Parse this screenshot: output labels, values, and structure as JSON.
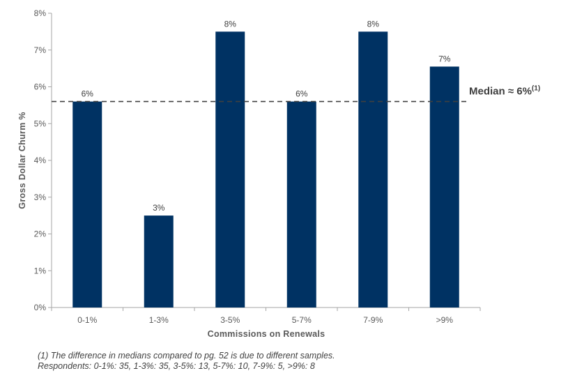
{
  "chart_data": {
    "type": "bar",
    "categories": [
      "0-1%",
      "1-3%",
      "3-5%",
      "5-7%",
      "7-9%",
      ">9%"
    ],
    "values": [
      5.6,
      2.5,
      7.5,
      5.6,
      7.5,
      6.55
    ],
    "data_labels": [
      "6%",
      "3%",
      "8%",
      "6%",
      "8%",
      "7%"
    ],
    "xlabel": "Commissions on Renewals",
    "ylabel": "Gross Dollar Churm %",
    "ylim": [
      0,
      8
    ],
    "yticks": [
      0,
      1,
      2,
      3,
      4,
      5,
      6,
      7,
      8
    ],
    "ytick_labels": [
      "0%",
      "1%",
      "2%",
      "3%",
      "4%",
      "5%",
      "6%",
      "7%",
      "8%"
    ],
    "bar_color": "#003263",
    "grid": false,
    "legend": "none",
    "reference_line": {
      "value": 5.6,
      "label": "Median ≈ 6%",
      "label_sup": "(1)",
      "style": "dashed",
      "color": "#404040"
    }
  },
  "footnote": {
    "line1": "(1) The difference in medians compared to pg. 52 is due to different samples.",
    "line2": "Respondents: 0-1%: 35, 1-3%: 35, 3-5%: 13, 5-7%: 10, 7-9%: 5, >9%: 8"
  }
}
